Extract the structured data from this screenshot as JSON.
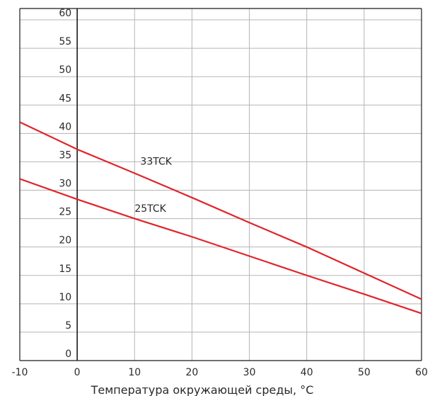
{
  "chart_data": {
    "type": "line",
    "title": "",
    "xlabel": "Температура окружающей среды, °C",
    "ylabel": "",
    "xlim": [
      -10,
      60
    ],
    "ylim": [
      0,
      62
    ],
    "x_ticks": [
      -10,
      0,
      10,
      20,
      30,
      40,
      50,
      60
    ],
    "y_ticks": [
      0,
      5,
      10,
      15,
      20,
      25,
      30,
      35,
      40,
      45,
      50,
      55,
      60
    ],
    "grid": true,
    "legend": "none",
    "series": [
      {
        "name": "33TCK",
        "color": "#e0252b",
        "x": [
          -10,
          0,
          10,
          20,
          30,
          40,
          50,
          60
        ],
        "y": [
          42,
          37.2,
          33,
          28.7,
          24.3,
          20,
          15.4,
          10.8
        ]
      },
      {
        "name": "25TCK",
        "color": "#e0252b",
        "x": [
          -10,
          0,
          10,
          20,
          30,
          40,
          50,
          60
        ],
        "y": [
          32,
          28.4,
          25,
          21.8,
          18.4,
          15,
          11.7,
          8.3
        ]
      }
    ]
  }
}
